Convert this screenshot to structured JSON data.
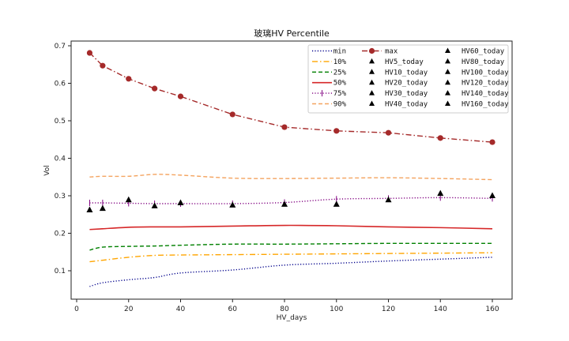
{
  "chart_data": {
    "type": "line",
    "title": "玻璃HV Percentile",
    "xlabel": "HV_days",
    "ylabel": "Vol",
    "xlim": [
      -2,
      167
    ],
    "ylim": [
      0.03,
      0.715
    ],
    "xticks": [
      0,
      20,
      40,
      60,
      80,
      100,
      120,
      140,
      160
    ],
    "yticks": [
      0.1,
      0.2,
      0.3,
      0.4,
      0.5,
      0.6,
      0.7
    ],
    "xtick_labels": [
      "0",
      "20",
      "40",
      "60",
      "80",
      "100",
      "120",
      "140",
      "160"
    ],
    "ytick_labels": [
      "0.1",
      "0.2",
      "0.3",
      "0.4",
      "0.5",
      "0.6",
      "0.7"
    ],
    "grid": false,
    "legend_position": "top-right",
    "x": [
      5,
      10,
      20,
      30,
      40,
      60,
      80,
      100,
      120,
      140,
      160
    ],
    "series": [
      {
        "name": "min",
        "color": "#00008b",
        "style": "dotted",
        "values": [
          0.058,
          0.068,
          0.076,
          0.082,
          0.094,
          0.102,
          0.115,
          0.12,
          0.126,
          0.131,
          0.136
        ]
      },
      {
        "name": "10%",
        "color": "#ffa500",
        "style": "dashdot",
        "values": [
          0.124,
          0.128,
          0.136,
          0.141,
          0.142,
          0.143,
          0.144,
          0.145,
          0.146,
          0.147,
          0.148
        ]
      },
      {
        "name": "25%",
        "color": "#008000",
        "style": "dashed",
        "values": [
          0.155,
          0.163,
          0.165,
          0.166,
          0.168,
          0.171,
          0.171,
          0.172,
          0.173,
          0.173,
          0.173
        ]
      },
      {
        "name": "50%",
        "color": "#d62728",
        "style": "solid",
        "values": [
          0.21,
          0.212,
          0.216,
          0.217,
          0.217,
          0.219,
          0.221,
          0.22,
          0.217,
          0.215,
          0.212
        ]
      },
      {
        "name": "75%",
        "color": "#800080",
        "style": "dotted-vline",
        "values": [
          0.281,
          0.281,
          0.28,
          0.279,
          0.279,
          0.279,
          0.282,
          0.291,
          0.293,
          0.295,
          0.293
        ]
      },
      {
        "name": "90%",
        "color": "#f4a460",
        "style": "dashed",
        "values": [
          0.35,
          0.352,
          0.352,
          0.357,
          0.355,
          0.347,
          0.346,
          0.347,
          0.348,
          0.346,
          0.343
        ]
      },
      {
        "name": "max",
        "color": "#a52a2a",
        "style": "dashdot-marker",
        "values": [
          0.681,
          0.647,
          0.612,
          0.586,
          0.565,
          0.517,
          0.483,
          0.473,
          0.468,
          0.454,
          0.443
        ]
      }
    ],
    "today_points": [
      {
        "name": "HV5_today",
        "x": 5,
        "y": 0.262
      },
      {
        "name": "HV10_today",
        "x": 10,
        "y": 0.266
      },
      {
        "name": "HV20_today",
        "x": 20,
        "y": 0.289
      },
      {
        "name": "HV30_today",
        "x": 30,
        "y": 0.273
      },
      {
        "name": "HV40_today",
        "x": 40,
        "y": 0.281
      },
      {
        "name": "HV60_today",
        "x": 60,
        "y": 0.275
      },
      {
        "name": "HV80_today",
        "x": 80,
        "y": 0.277
      },
      {
        "name": "HV100_today",
        "x": 100,
        "y": 0.277
      },
      {
        "name": "HV120_today",
        "x": 120,
        "y": 0.289
      },
      {
        "name": "HV140_today",
        "x": 140,
        "y": 0.306
      },
      {
        "name": "HV160_today",
        "x": 160,
        "y": 0.3
      }
    ],
    "today_marker_color": "#000000"
  }
}
